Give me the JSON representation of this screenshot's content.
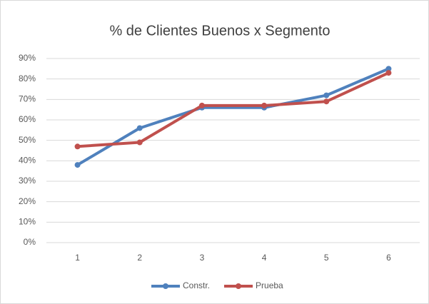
{
  "chart_data": {
    "type": "line",
    "title": "% de Clientes Buenos x Segmento",
    "categories": [
      "1",
      "2",
      "3",
      "4",
      "5",
      "6"
    ],
    "series": [
      {
        "name": "Constr.",
        "color": "#4f81bd",
        "values": [
          38,
          56,
          66,
          66,
          72,
          85
        ]
      },
      {
        "name": "Prueba",
        "color": "#c0504d",
        "values": [
          47,
          49,
          67,
          67,
          69,
          83
        ]
      }
    ],
    "ylim": [
      0,
      90
    ],
    "yticks": [
      {
        "value": 0,
        "label": "0%"
      },
      {
        "value": 10,
        "label": "10%"
      },
      {
        "value": 20,
        "label": "20%"
      },
      {
        "value": 30,
        "label": "30%"
      },
      {
        "value": 40,
        "label": "40%"
      },
      {
        "value": 50,
        "label": "50%"
      },
      {
        "value": 60,
        "label": "60%"
      },
      {
        "value": 70,
        "label": "70%"
      },
      {
        "value": 80,
        "label": "80%"
      },
      {
        "value": 90,
        "label": "90%"
      }
    ],
    "grid": true,
    "legend": "bottom"
  }
}
